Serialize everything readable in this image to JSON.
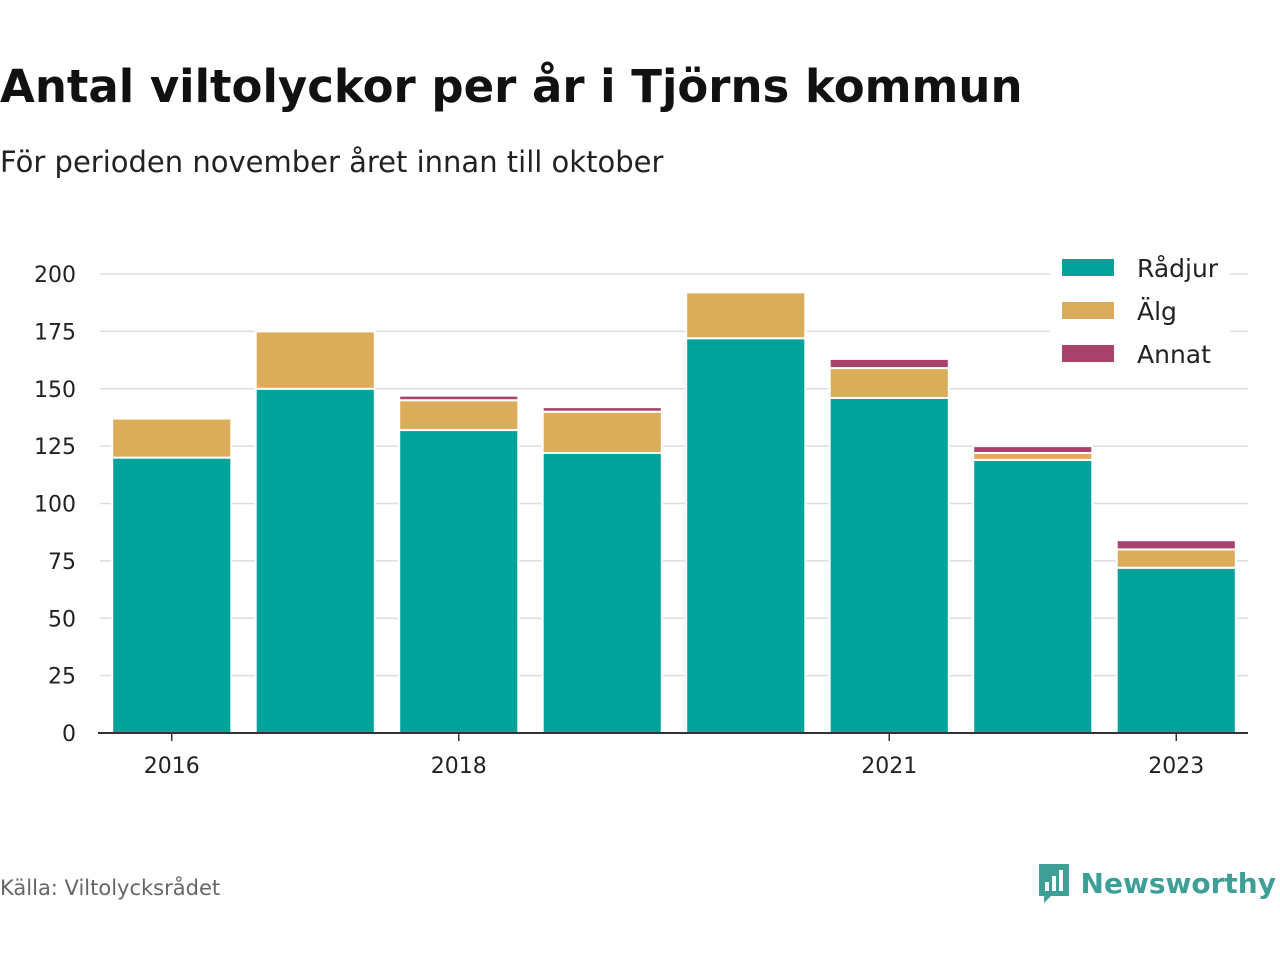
{
  "title": "Antal viltolyckor per år i Tjörns kommun",
  "subtitle": "För perioden november året innan till oktober",
  "source": "Källa: Viltolycksrådet",
  "brand": {
    "name": "Newsworthy",
    "icon": "newsworthy-logo-icon",
    "color": "#3e9f97"
  },
  "chart_data": {
    "type": "bar",
    "stacked": true,
    "categories": [
      "2016",
      "2017",
      "2018",
      "2019",
      "2020",
      "2021",
      "2022",
      "2023"
    ],
    "x_tick_labels": [
      "2016",
      "",
      "2018",
      "",
      "",
      "2021",
      "",
      "2023"
    ],
    "series": [
      {
        "name": "Rådjur",
        "color": "#00a39a",
        "values": [
          120,
          150,
          132,
          122,
          172,
          146,
          119,
          72
        ]
      },
      {
        "name": "Älg",
        "color": "#dbac5a",
        "values": [
          17,
          25,
          13,
          18,
          20,
          13,
          3,
          8
        ]
      },
      {
        "name": "Annat",
        "color": "#a8446b",
        "values": [
          0,
          0,
          2,
          2,
          0,
          4,
          3,
          4
        ]
      }
    ],
    "ylim": [
      0,
      200
    ],
    "yticks": [
      0,
      25,
      50,
      75,
      100,
      125,
      150,
      175,
      200
    ],
    "grid": true,
    "legend_position": "top-right",
    "xlabel": "",
    "ylabel": ""
  }
}
